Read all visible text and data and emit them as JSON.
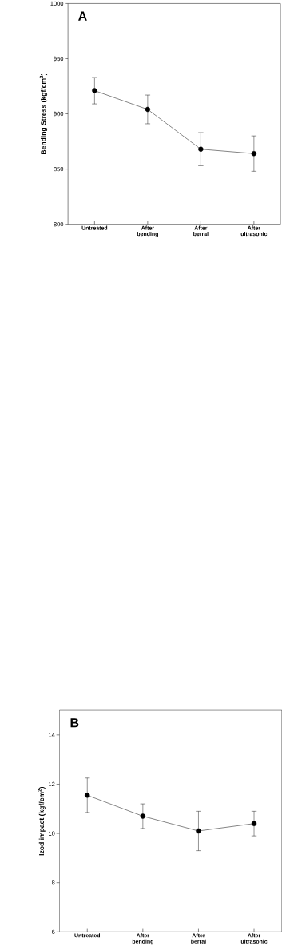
{
  "chart_data": [
    {
      "type": "line",
      "annotations": [
        "A"
      ],
      "ylabel": "Bending Stress (kgf/cm$^{2}$)",
      "categories": [
        "Untreated",
        "After bending",
        "After berral",
        "After ultrasonic"
      ],
      "series": [
        {
          "color": "#000000",
          "values": [
            921,
            904,
            868,
            864
          ],
          "errors": [
            12,
            13,
            15,
            16
          ]
        }
      ],
      "ylim": [
        800,
        1000
      ],
      "yticks": [
        800,
        850,
        900,
        950,
        1000
      ],
      "marker": "circle",
      "line_style": "solid"
    },
    {
      "type": "line",
      "annotations": [
        "B"
      ],
      "ylabel": "Izod impact (kgf/cm$^{2}$)",
      "categories": [
        "Untreated",
        "After bending",
        "After berral",
        "After ultrasonic"
      ],
      "series": [
        {
          "color": "#000000",
          "values": [
            11.55,
            10.7,
            10.1,
            10.4
          ],
          "errors": [
            0.7,
            0.5,
            0.8,
            0.5
          ]
        }
      ],
      "ylim": [
        6,
        15
      ],
      "yticks": [
        6,
        8,
        10,
        12,
        14
      ],
      "marker": "circle",
      "line_style": "solid"
    }
  ]
}
